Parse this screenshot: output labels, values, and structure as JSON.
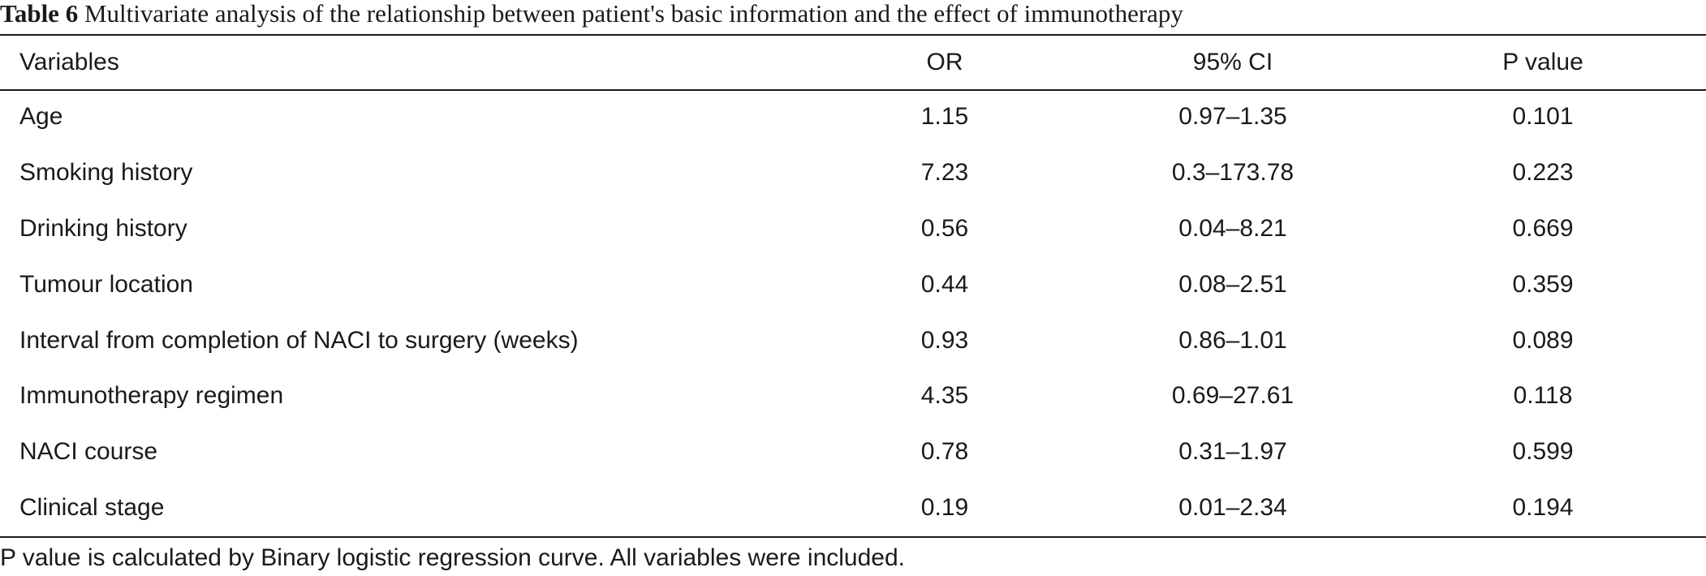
{
  "caption": {
    "label": "Table 6",
    "text": "Multivariate analysis of the relationship between patient's basic information and the effect of immunotherapy"
  },
  "table": {
    "headers": [
      "Variables",
      "OR",
      "95% CI",
      "P value"
    ],
    "rows": [
      [
        "Age",
        "1.15",
        "0.97–1.35",
        "0.101"
      ],
      [
        "Smoking history",
        "7.23",
        "0.3–173.78",
        "0.223"
      ],
      [
        "Drinking history",
        "0.56",
        "0.04–8.21",
        "0.669"
      ],
      [
        "Tumour location",
        "0.44",
        "0.08–2.51",
        "0.359"
      ],
      [
        "Interval from completion of NACI to surgery (weeks)",
        "0.93",
        "0.86–1.01",
        "0.089"
      ],
      [
        "Immunotherapy regimen",
        "4.35",
        "0.69–27.61",
        "0.118"
      ],
      [
        "NACI course",
        "0.78",
        "0.31–1.97",
        "0.599"
      ],
      [
        "Clinical stage",
        "0.19",
        "0.01–2.34",
        "0.194"
      ]
    ]
  },
  "footnote": "P value is calculated by Binary logistic regression curve. All variables were included."
}
